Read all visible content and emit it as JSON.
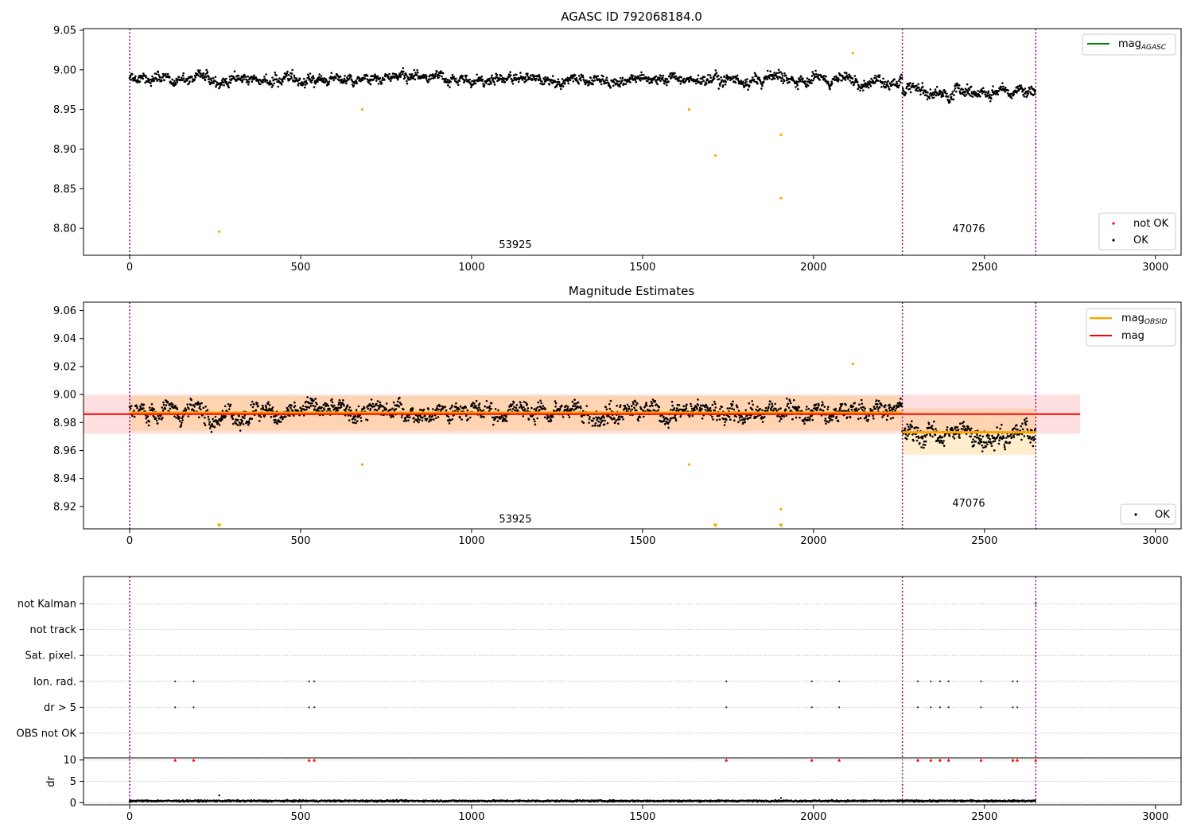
{
  "chart_data": [
    {
      "type": "scatter",
      "title": "AGASC ID 792068184.0",
      "xlim": [
        -135,
        3075
      ],
      "ylim": [
        8.766,
        9.052
      ],
      "xticks": [
        0,
        500,
        1000,
        1500,
        2000,
        2500,
        3000
      ],
      "yticks": [
        8.8,
        8.85,
        8.9,
        8.95,
        9.0,
        9.05
      ],
      "ytick_labels": [
        "8.80",
        "8.85",
        "8.90",
        "8.95",
        "9.00",
        "9.05"
      ],
      "obsid_bounds": [
        0,
        2260,
        2650
      ],
      "obsid_labels": [
        {
          "text": "53925",
          "x": 1130,
          "y": 8.78
        },
        {
          "text": "47076",
          "x": 2450,
          "y": 8.801
        }
      ],
      "legend_upper": {
        "position": "upper right",
        "entries": [
          {
            "label": "mag",
            "sub": "AGASC",
            "color": "#008000",
            "kind": "line"
          }
        ]
      },
      "legend_lower": {
        "position": "lower right",
        "entries": [
          {
            "label": "not OK",
            "color": "#ff0000",
            "kind": "marker"
          },
          {
            "label": "OK",
            "color": "#000000",
            "kind": "marker"
          }
        ]
      },
      "series": [
        {
          "name": "OK",
          "color": "#000000",
          "style": "dense",
          "segments": [
            {
              "x0": 0,
              "x1": 2260,
              "level": 8.988,
              "amp": 0.018
            },
            {
              "x0": 2260,
              "x1": 2650,
              "level": 8.973,
              "amp": 0.02
            }
          ]
        },
        {
          "name": "outliers",
          "color": "#ffa500",
          "x": [
            262,
            680,
            1636,
            1713,
            1905,
            1905,
            2115
          ],
          "y": [
            8.796,
            8.95,
            8.95,
            8.892,
            8.918,
            8.838,
            9.021
          ]
        }
      ]
    },
    {
      "type": "scatter",
      "title": "Magnitude Estimates",
      "xlim": [
        -135,
        3075
      ],
      "ylim": [
        8.904,
        9.066
      ],
      "xticks": [
        0,
        500,
        1000,
        1500,
        2000,
        2500,
        3000
      ],
      "yticks": [
        8.92,
        8.94,
        8.96,
        8.98,
        9.0,
        9.02,
        9.04,
        9.06
      ],
      "ytick_labels": [
        "8.92",
        "8.94",
        "8.96",
        "8.98",
        "9.00",
        "9.02",
        "9.04",
        "9.06"
      ],
      "obsid_bounds": [
        0,
        2260,
        2650
      ],
      "obsid_labels": [
        {
          "text": "53925",
          "x": 1130,
          "y": 8.91
        },
        {
          "text": "47076",
          "x": 2450,
          "y": 8.922
        }
      ],
      "mag": {
        "value": 8.986,
        "band": [
          8.972,
          9.0
        ],
        "x0": -135,
        "x1": 2780,
        "color": "#ff0000"
      },
      "mag_obsid": [
        {
          "x0": 0,
          "x1": 2260,
          "value": 8.987,
          "band": [
            8.974,
            8.999
          ]
        },
        {
          "x0": 2260,
          "x1": 2650,
          "value": 8.973,
          "band": [
            8.957,
            8.99
          ]
        }
      ],
      "legend_upper": {
        "position": "upper right",
        "entries": [
          {
            "label": "mag",
            "sub": "OBSID",
            "color": "#ffa500",
            "kind": "line"
          },
          {
            "label": "mag",
            "sub": "",
            "color": "#ff0000",
            "kind": "line"
          }
        ]
      },
      "legend_lower": {
        "position": "lower right",
        "entries": [
          {
            "label": "OK",
            "color": "#000000",
            "kind": "marker"
          }
        ]
      },
      "series": [
        {
          "name": "OK",
          "color": "#000000",
          "style": "dense",
          "segments": [
            {
              "x0": 0,
              "x1": 2260,
              "level": 8.988,
              "amp": 0.018
            },
            {
              "x0": 2260,
              "x1": 2650,
              "level": 8.972,
              "amp": 0.02
            }
          ]
        },
        {
          "name": "outliers",
          "color": "#ffa500",
          "x": [
            680,
            1636,
            1905,
            2115
          ],
          "y": [
            8.95,
            8.95,
            8.918,
            9.022
          ]
        },
        {
          "name": "off-scale",
          "color": "#ffa500",
          "marker": "triangle-down",
          "x": [
            262,
            1713,
            1905
          ],
          "y": [
            8.906,
            8.906,
            8.906
          ]
        }
      ]
    },
    {
      "type": "scatter",
      "title": "",
      "xlim": [
        -135,
        3075
      ],
      "flag_categories": [
        "not Kalman",
        "not track",
        "Sat. pixel.",
        "Ion. rad.",
        "dr > 5",
        "OBS not OK"
      ],
      "flags": {
        "Ion. rad.": [
          133,
          187,
          525,
          540,
          1745,
          1995,
          2075,
          2305,
          2343,
          2370,
          2395,
          2490,
          2583,
          2596
        ],
        "dr > 5": [
          133,
          187,
          525,
          540,
          1745,
          1995,
          2075,
          2305,
          2343,
          2370,
          2395,
          2490,
          2583,
          2596
        ],
        "not Kalman": [
          2650
        ]
      },
      "red_markers_x": [
        133,
        187,
        525,
        540,
        1745,
        1995,
        2075,
        2305,
        2343,
        2370,
        2395,
        2490,
        2583,
        2596,
        2650
      ],
      "obsid_bounds": [
        0,
        2260,
        2650
      ],
      "dr_ylabel": "dr",
      "dr_ylim": [
        -0.5,
        10.5
      ],
      "dr_yticks": [
        0,
        5,
        10
      ],
      "dr_ytick_labels": [
        "0",
        "5",
        "10"
      ],
      "dr_series": {
        "name": "dr",
        "color": "#000000",
        "x0": 0,
        "x1": 2650,
        "level": 0.4,
        "amp": 0.35,
        "spikes": [
          {
            "x": 262,
            "y": 1.7
          },
          {
            "x": 1905,
            "y": 1.1
          }
        ]
      },
      "xticks": [
        0,
        500,
        1000,
        1500,
        2000,
        2500,
        3000
      ]
    }
  ]
}
